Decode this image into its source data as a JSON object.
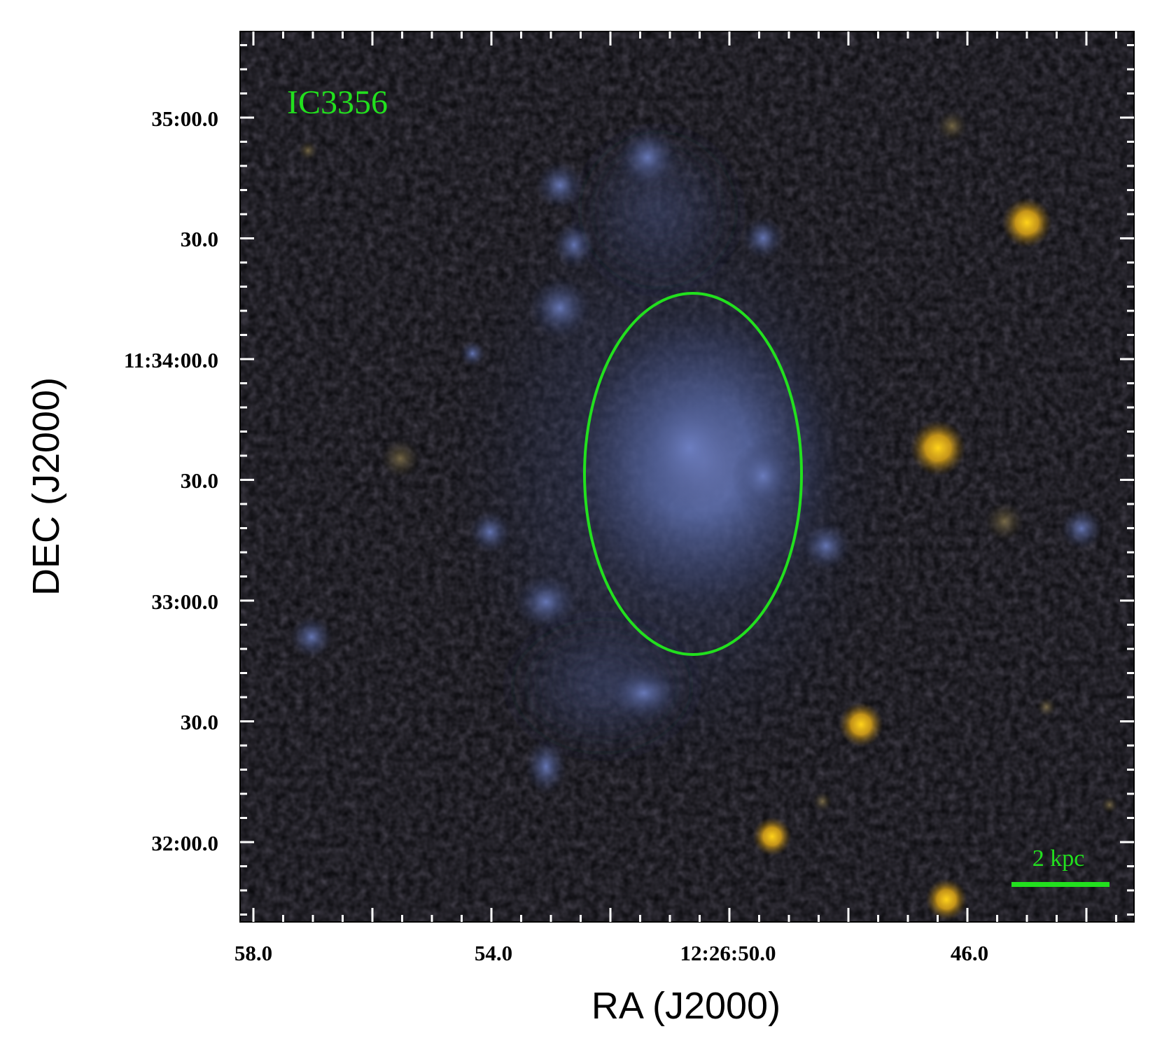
{
  "figure": {
    "object_label": "IC3356",
    "scale_bar_label": "2 kpc",
    "overlay_color": "#22e01e",
    "sky_color": "#07070a",
    "galaxy_color": "#6f82c8",
    "star_color": "#f0c020"
  },
  "axes": {
    "xlabel": "RA (J2000)",
    "ylabel": "DEC (J2000)",
    "x_ticks": [
      "58.0",
      "54.0",
      "12:26:50.0",
      "46.0"
    ],
    "y_ticks": [
      "35:00.0",
      "30.0",
      "11:34:00.0",
      "30.0",
      "33:00.0",
      "30.0",
      "32:00.0"
    ]
  }
}
